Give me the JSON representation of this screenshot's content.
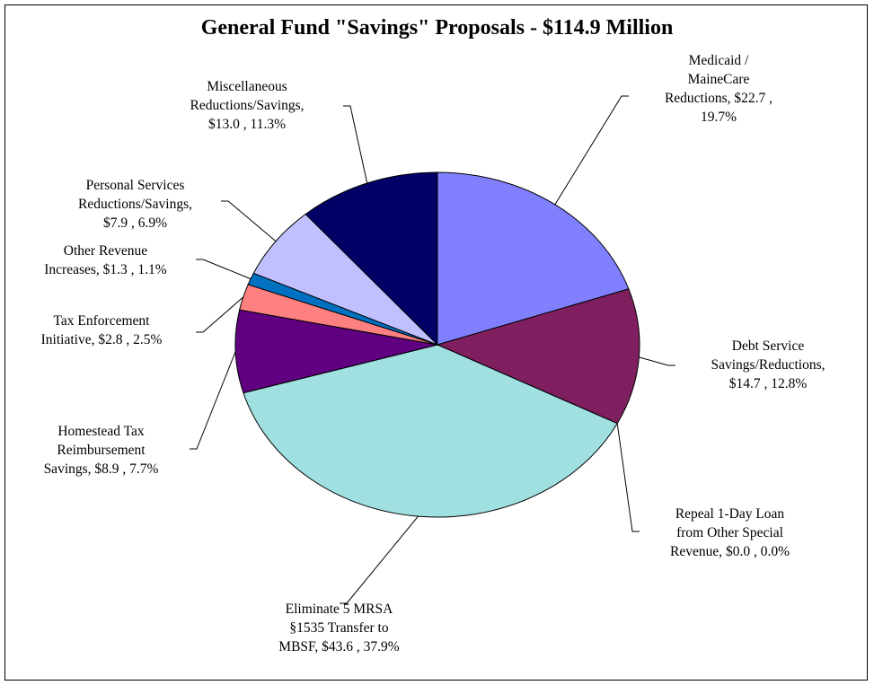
{
  "chart_data": {
    "type": "pie",
    "title": "General Fund \"Savings\" Proposals - $114.9 Million",
    "slices": [
      {
        "name": "Medicaid / MaineCare Reductions",
        "value": 22.7,
        "percent": 19.7,
        "color": "#8080ff",
        "label": "Medicaid /\nMaineCare\nReductions, $22.7 ,\n19.7%"
      },
      {
        "name": "Debt Service Savings/Reductions",
        "value": 14.7,
        "percent": 12.8,
        "color": "#7f1f5f",
        "label": "Debt Service\nSavings/Reductions,\n$14.7 , 12.8%"
      },
      {
        "name": "Repeal 1-Day Loan from Other Special Revenue",
        "value": 0.0,
        "percent": 0.0,
        "color": "#ffffcc",
        "label": "Repeal 1-Day Loan\nfrom Other Special\nRevenue, $0.0 , 0.0%"
      },
      {
        "name": "Eliminate 5 MRSA §1535 Transfer to MBSF",
        "value": 43.6,
        "percent": 37.9,
        "color": "#a0e0e0",
        "label": "Eliminate 5 MRSA\n§1535 Transfer to\nMBSF, $43.6 , 37.9%"
      },
      {
        "name": "Homestead Tax Reimbursement Savings",
        "value": 8.9,
        "percent": 7.7,
        "color": "#600080",
        "label": "Homestead Tax\nReimbursement\nSavings, $8.9 , 7.7%"
      },
      {
        "name": "Tax Enforcement Initiative",
        "value": 2.8,
        "percent": 2.5,
        "color": "#ff8080",
        "label": "Tax Enforcement\nInitiative, $2.8 , 2.5%"
      },
      {
        "name": "Other Revenue Increases",
        "value": 1.3,
        "percent": 1.1,
        "color": "#0070c0",
        "label": "Other Revenue\nIncreases, $1.3 , 1.1%"
      },
      {
        "name": "Personal Services Reductions/Savings",
        "value": 7.9,
        "percent": 6.9,
        "color": "#c0c0ff",
        "label": "Personal Services\nReductions/Savings,\n$7.9 , 6.9%"
      },
      {
        "name": "Miscellaneous Reductions/Savings",
        "value": 13.0,
        "percent": 11.3,
        "color": "#000066",
        "label": "Miscellaneous\nReductions/Savings,\n$13.0 , 11.3%"
      }
    ],
    "legend": "none",
    "grid": false
  }
}
